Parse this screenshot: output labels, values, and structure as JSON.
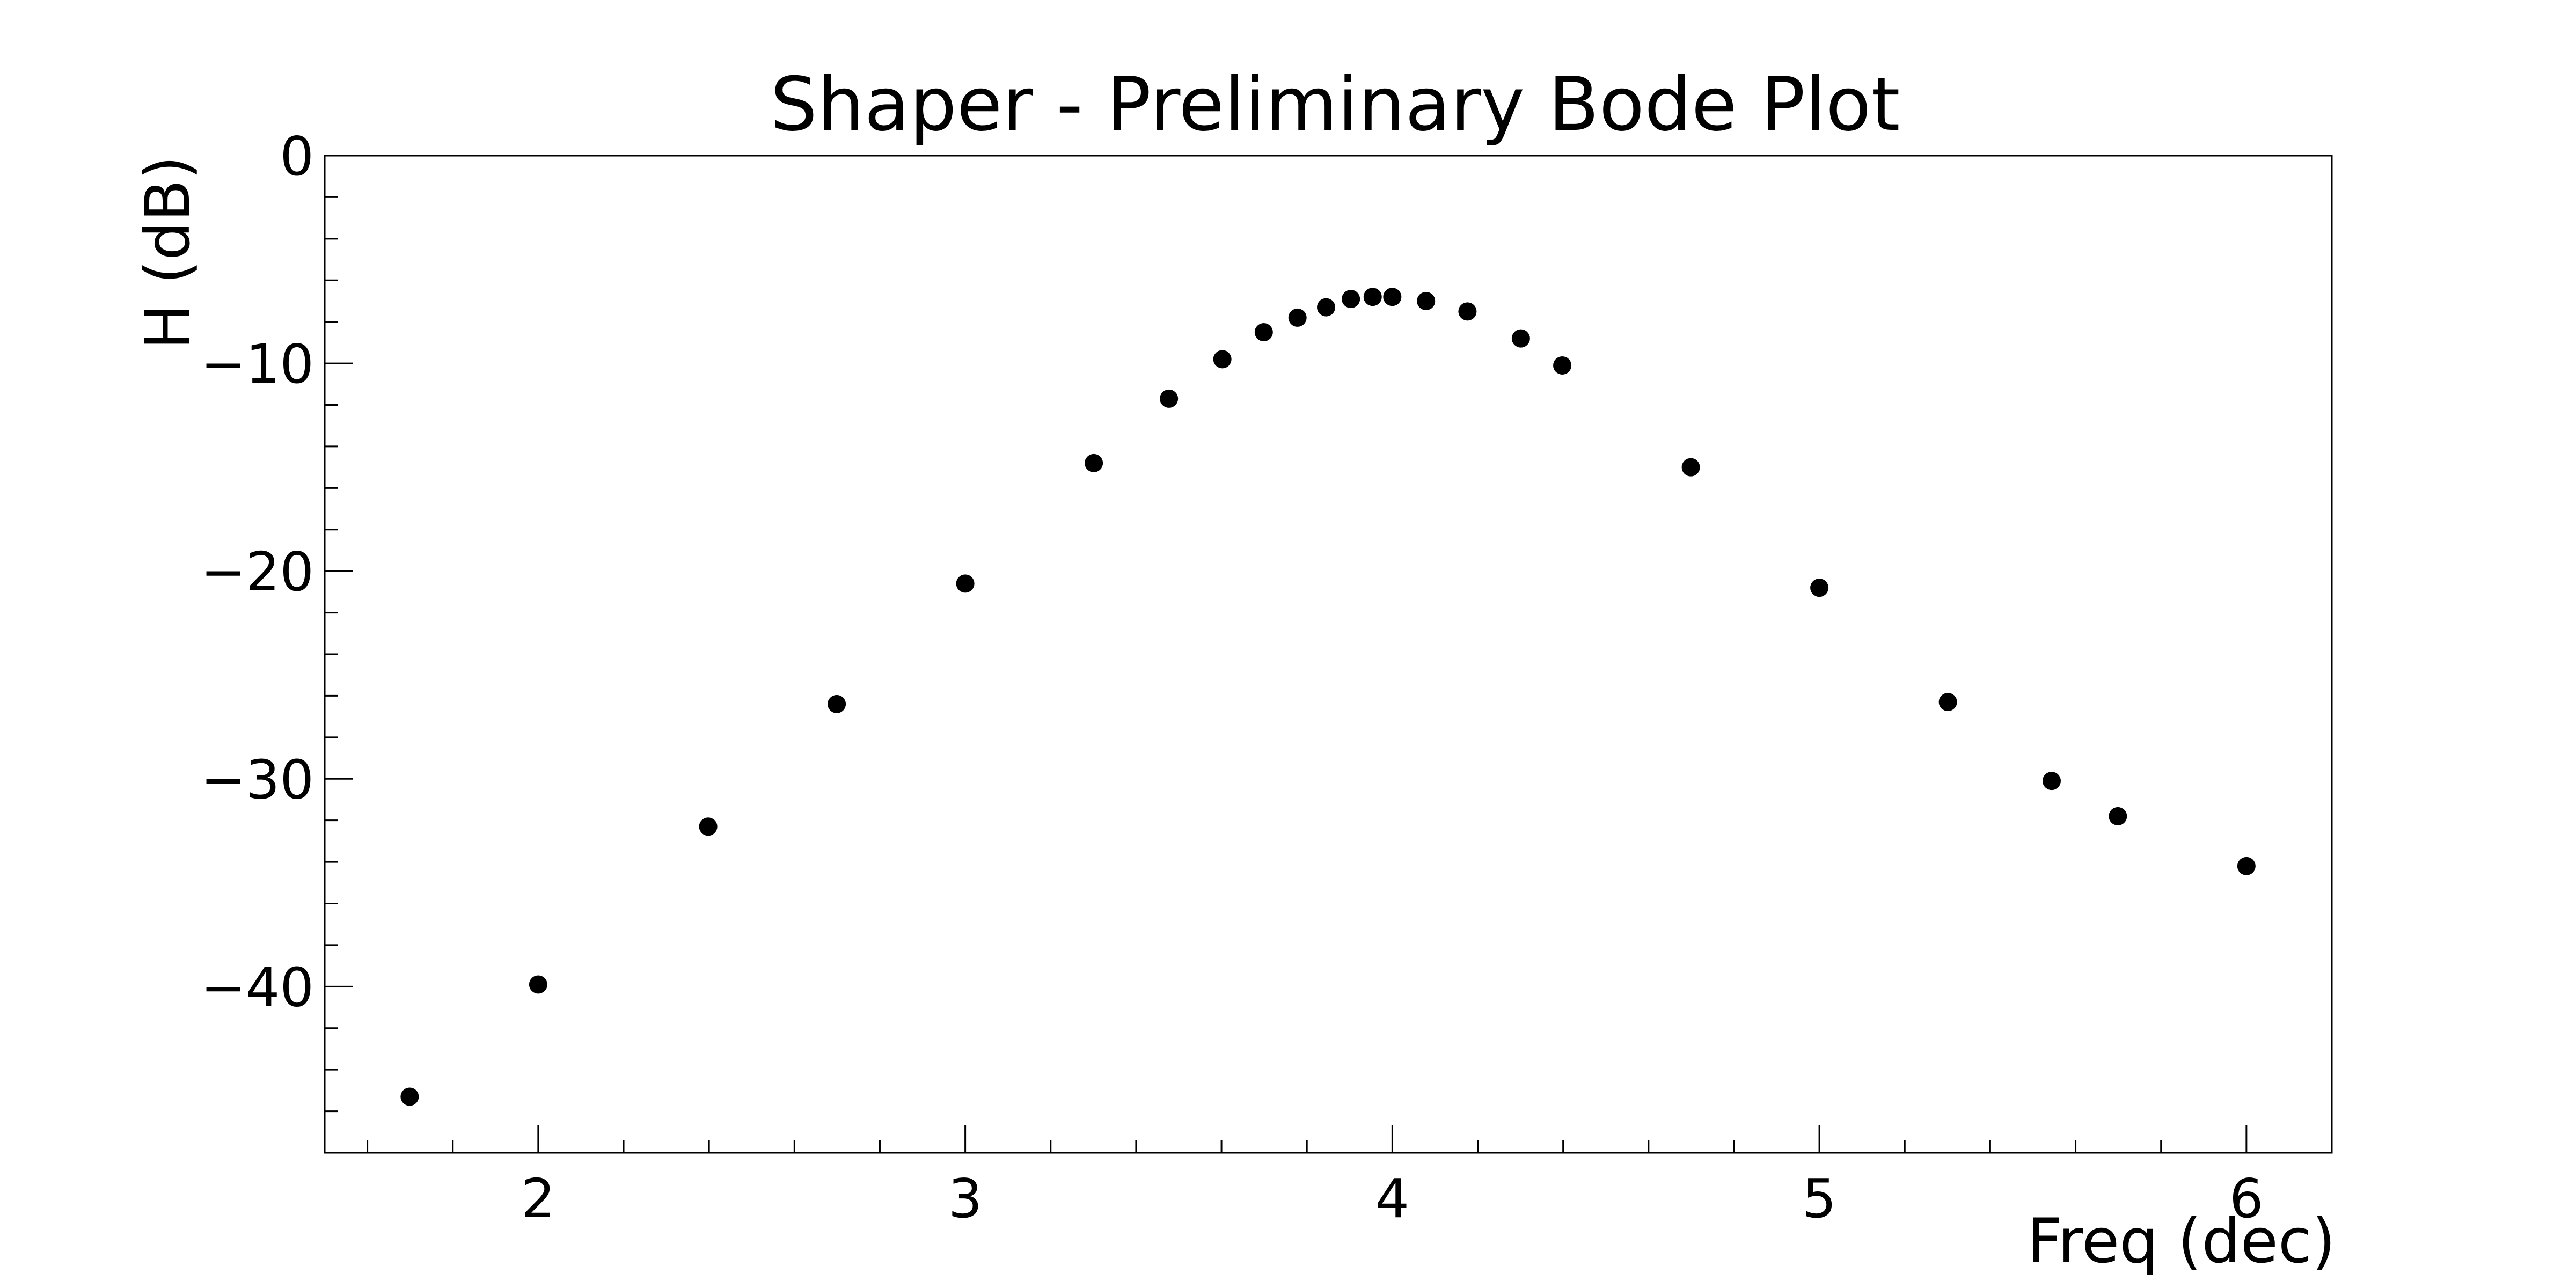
{
  "chart_data": {
    "type": "scatter",
    "title": "Shaper - Preliminary Bode Plot",
    "xlabel": "Freq (dec)",
    "ylabel": "H (dB)",
    "xlim": [
      1.5,
      6.2
    ],
    "ylim": [
      -48,
      0
    ],
    "xticks": [
      2,
      3,
      4,
      5,
      6
    ],
    "xtick_labels": [
      "2",
      "3",
      "4",
      "5",
      "6"
    ],
    "yticks": [
      0,
      -10,
      -20,
      -30,
      -40
    ],
    "ytick_labels": [
      "0",
      "−10",
      "−20",
      "−30",
      "−40"
    ],
    "grid": false,
    "marker_color": "#000000",
    "series": [
      {
        "name": "H",
        "x": [
          1.699,
          2.0,
          2.398,
          2.699,
          3.0,
          3.301,
          3.477,
          3.602,
          3.699,
          3.778,
          3.845,
          3.903,
          3.954,
          4.0,
          4.079,
          4.176,
          4.301,
          4.398,
          4.699,
          5.0,
          5.301,
          5.544,
          5.699,
          6.0
        ],
        "y": [
          -45.3,
          -39.9,
          -32.3,
          -26.4,
          -20.6,
          -14.8,
          -11.7,
          -9.8,
          -8.5,
          -7.8,
          -7.3,
          -6.9,
          -6.8,
          -6.8,
          -7.0,
          -7.5,
          -8.8,
          -10.1,
          -15.0,
          -20.8,
          -26.3,
          -30.1,
          -31.8,
          -34.2
        ]
      }
    ]
  }
}
